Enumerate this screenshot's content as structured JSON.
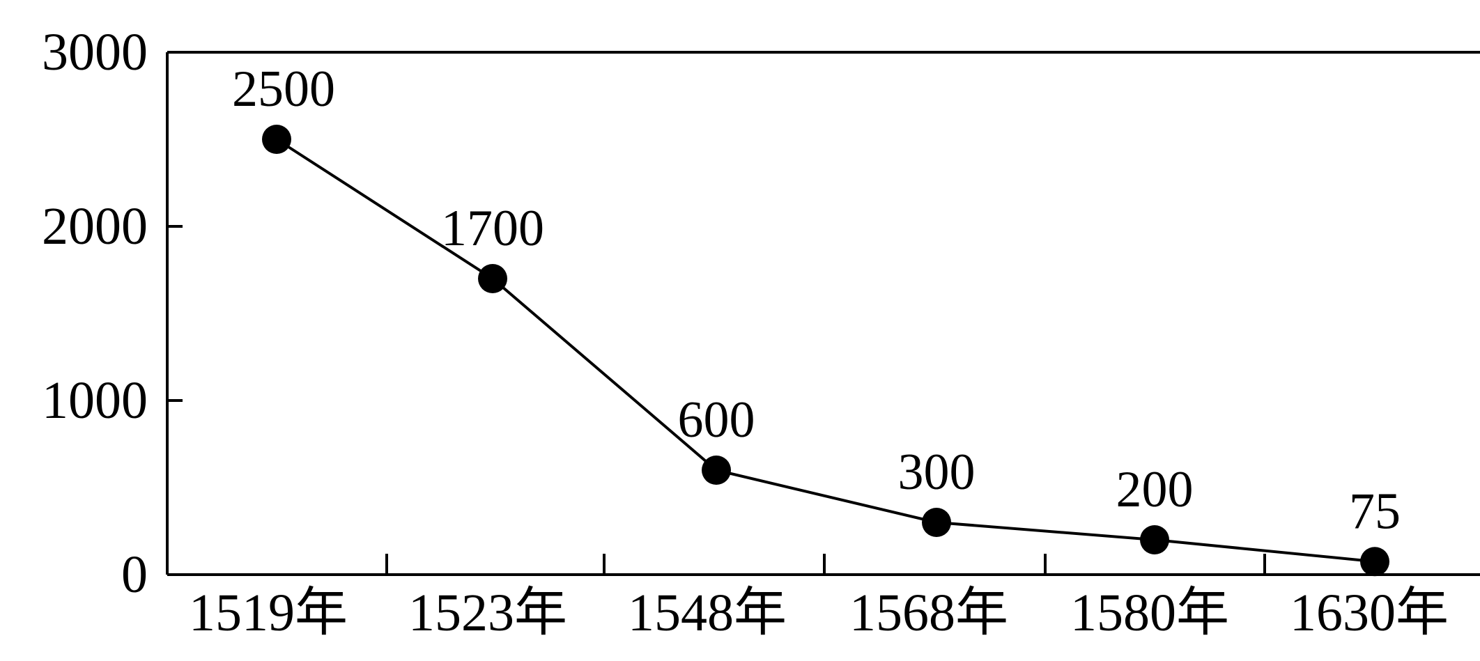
{
  "chart_data": {
    "type": "line",
    "title": "",
    "xlabel": "",
    "ylabel": "",
    "categories": [
      "1519年",
      "1523年",
      "1548年",
      "1568年",
      "1580年",
      "1630年"
    ],
    "values": [
      2500,
      1700,
      600,
      300,
      200,
      75
    ],
    "data_labels": [
      "2500",
      "1700",
      "600",
      "300",
      "200",
      "75"
    ],
    "y_ticks": [
      "0",
      "1000",
      "2000",
      "3000"
    ],
    "y_tick_values": [
      0,
      1000,
      2000,
      3000
    ],
    "ylim": [
      0,
      3000
    ],
    "grid": false,
    "legend": "none",
    "marker": "filled-circle",
    "line_color": "#000000",
    "marker_color": "#000000"
  }
}
